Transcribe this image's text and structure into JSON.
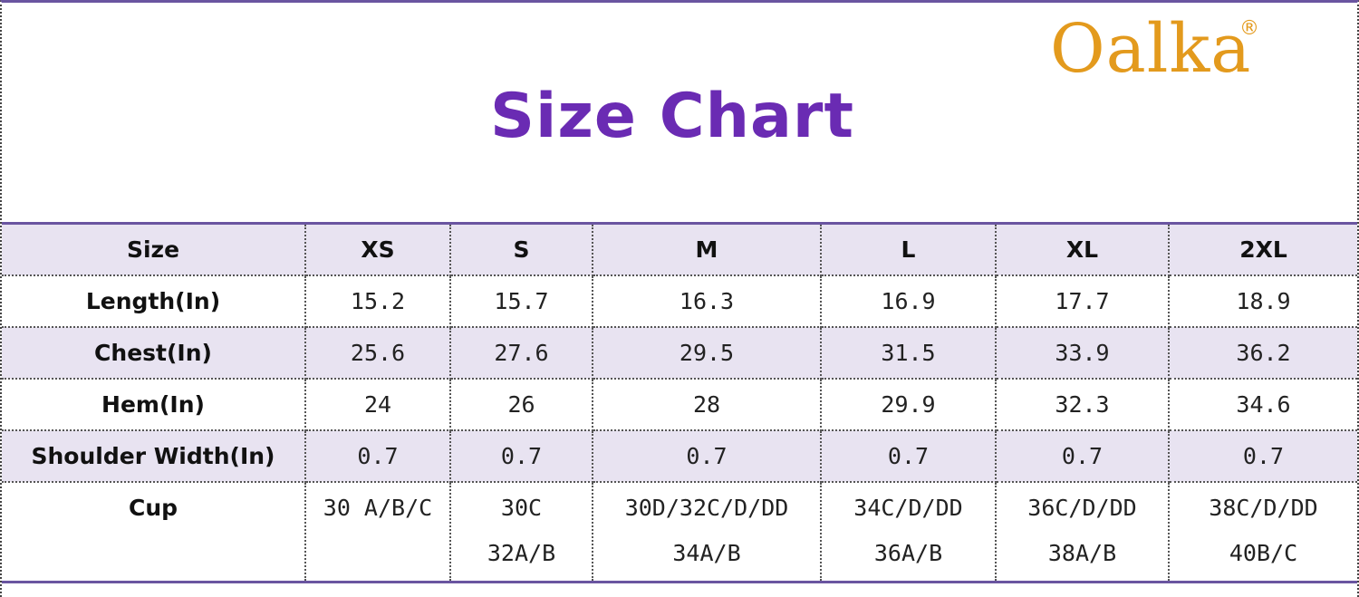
{
  "brand": {
    "name": "Oalka",
    "registered": "®",
    "color": "#e39a1d"
  },
  "title": {
    "text": "Size Chart",
    "color": "#6a2bb3"
  },
  "table": {
    "header": [
      "Size",
      "XS",
      "S",
      "M",
      "L",
      "XL",
      "2XL"
    ],
    "rows": [
      {
        "label": "Length(In)",
        "values": [
          "15.2",
          "15.7",
          "16.3",
          "16.9",
          "17.7",
          "18.9"
        ]
      },
      {
        "label": "Chest(In)",
        "values": [
          "25.6",
          "27.6",
          "29.5",
          "31.5",
          "33.9",
          "36.2"
        ]
      },
      {
        "label": "Hem(In)",
        "values": [
          "24",
          "26",
          "28",
          "29.9",
          "32.3",
          "34.6"
        ]
      },
      {
        "label": "Shoulder Width(In)",
        "values": [
          "0.7",
          "0.7",
          "0.7",
          "0.7",
          "0.7",
          "0.7"
        ]
      }
    ],
    "cup": {
      "label": "Cup",
      "line1": [
        "30 A/B/C",
        "30C",
        "30D/32C/D/DD",
        "34C/D/DD",
        "36C/D/DD",
        "38C/D/DD"
      ],
      "line2": [
        "",
        "32A/B",
        "34A/B",
        "36A/B",
        "38A/B",
        "40B/C"
      ]
    },
    "shade_color": "#e8e3f1",
    "rule_color": "#6a55a0"
  }
}
